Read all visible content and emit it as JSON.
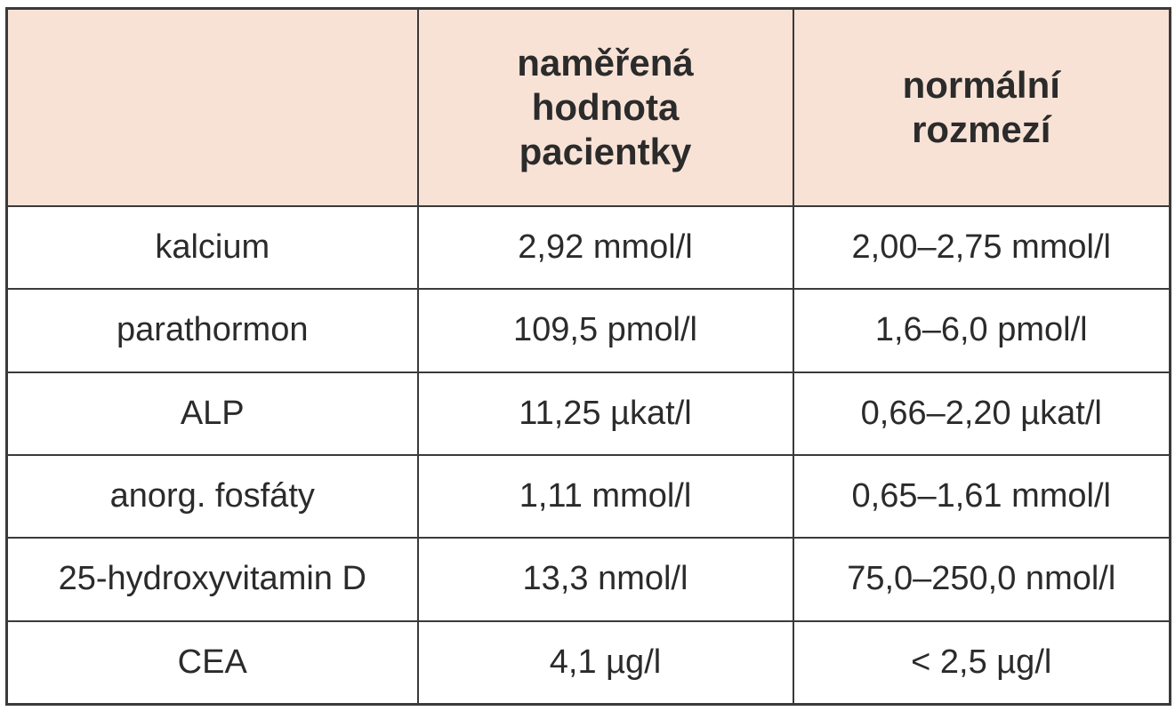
{
  "table": {
    "header": {
      "col1": "",
      "col2_lines": [
        "naměřená",
        "hodnota",
        "pacientky"
      ],
      "col3_lines": [
        "normální",
        "rozmezí"
      ]
    },
    "rows": [
      {
        "name": "kalcium",
        "value": "2,92 mmol/l",
        "range": "2,00–2,75 mmol/l"
      },
      {
        "name": "parathormon",
        "value": "109,5 pmol/l",
        "range": "1,6–6,0 pmol/l"
      },
      {
        "name": "ALP",
        "value": "11,25 µkat/l",
        "range": "0,66–2,20 µkat/l"
      },
      {
        "name": "anorg. fosfáty",
        "value": "1,11 mmol/l",
        "range": "0,65–1,61 mmol/l"
      },
      {
        "name": "25-hydroxyvitamin D",
        "value": "13,3 nmol/l",
        "range": "75,0–250,0 nmol/l"
      },
      {
        "name": "CEA",
        "value": "4,1 µg/l",
        "range": "< 2,5 µg/l"
      }
    ]
  },
  "colors": {
    "header_bg": "#f8e2d6",
    "border": "#3a3a3a",
    "text": "#2b2b2b"
  }
}
